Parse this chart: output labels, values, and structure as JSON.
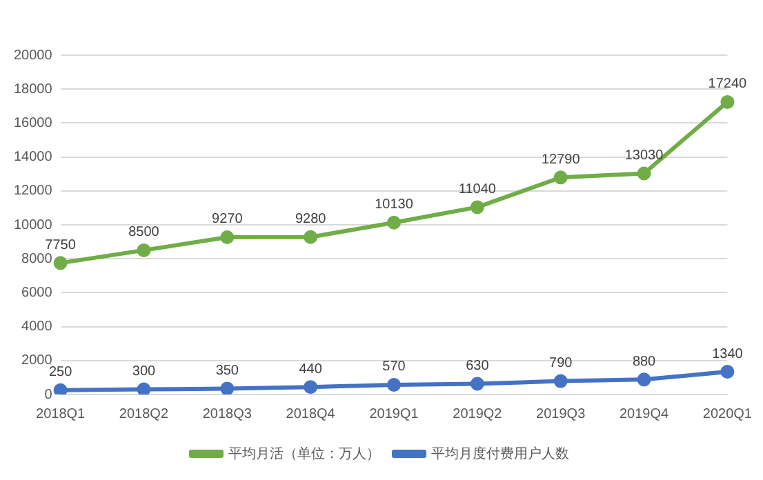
{
  "chart_data": {
    "type": "line",
    "categories": [
      "2018Q1",
      "2018Q2",
      "2018Q3",
      "2018Q4",
      "2019Q1",
      "2019Q2",
      "2019Q3",
      "2019Q4",
      "2020Q1"
    ],
    "series": [
      {
        "name": "平均月活（单位：万人）",
        "color": "#70ad47",
        "values": [
          7750,
          8500,
          9270,
          9280,
          10130,
          11040,
          12790,
          13030,
          17240
        ]
      },
      {
        "name": "平均月度付费用户人数",
        "color": "#4472c4",
        "values": [
          250,
          300,
          350,
          440,
          570,
          630,
          790,
          880,
          1340
        ]
      }
    ],
    "ylim": [
      0,
      20000
    ],
    "yticks": [
      0,
      2000,
      4000,
      6000,
      8000,
      10000,
      12000,
      14000,
      16000,
      18000,
      20000
    ],
    "grid": "y",
    "legend": "bottom",
    "marker": "circle",
    "line_style": "solid",
    "data_labels": true
  }
}
